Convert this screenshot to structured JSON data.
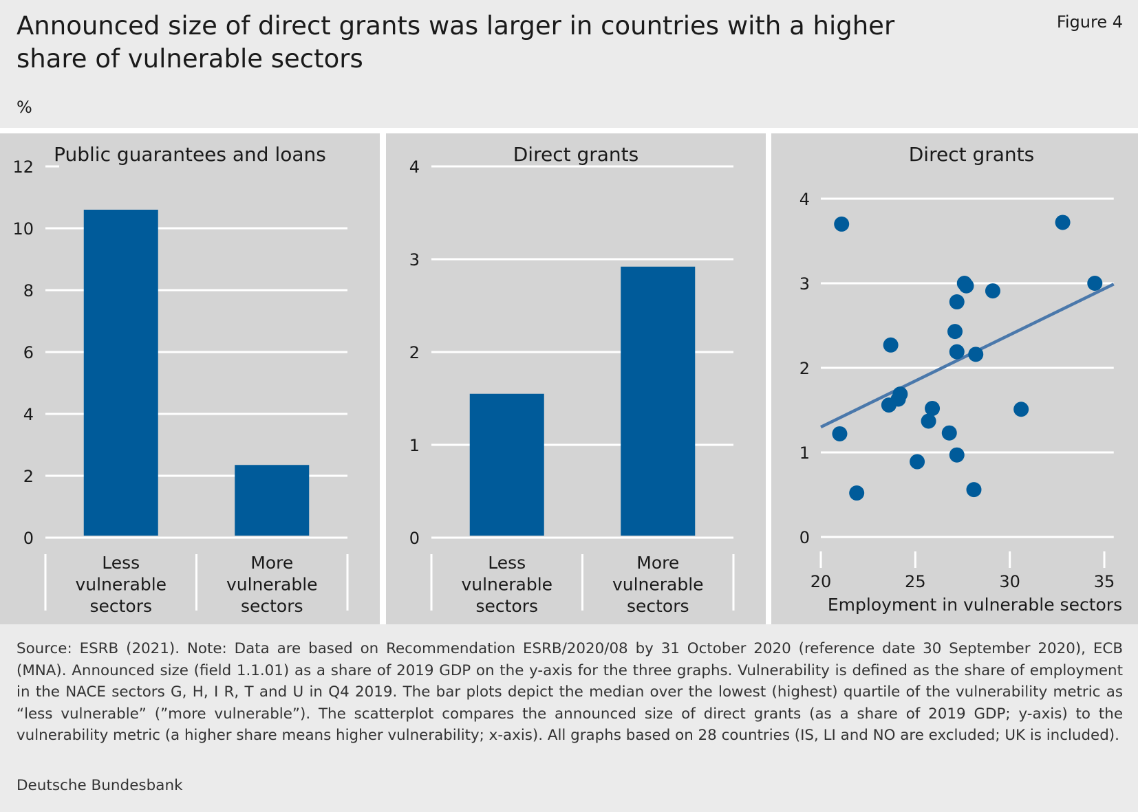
{
  "header": {
    "title": "Announced size of direct grants was larger in countries with a higher share of vulnerable sectors",
    "figure_label": "Figure 4",
    "unit": "%"
  },
  "colors": {
    "background": "#ebebeb",
    "panel": "#d4d4d4",
    "bar": "#005b9a",
    "trend": "#4a78ab",
    "grid": "#ffffff"
  },
  "chart_data": [
    {
      "type": "bar",
      "title": "Public guarantees and loans",
      "categories": [
        "Less vulnerable sectors",
        "More vulnerable sectors"
      ],
      "category_lines": [
        [
          "Less",
          "vulnerable",
          "sectors"
        ],
        [
          "More",
          "vulnerable",
          "sectors"
        ]
      ],
      "values": [
        10.6,
        2.35
      ],
      "ylim": [
        0,
        12
      ],
      "yticks": [
        0,
        2,
        4,
        6,
        8,
        10,
        12
      ],
      "grid": true
    },
    {
      "type": "bar",
      "title": "Direct grants",
      "categories": [
        "Less vulnerable sectors",
        "More vulnerable sectors"
      ],
      "category_lines": [
        [
          "Less",
          "vulnerable",
          "sectors"
        ],
        [
          "More",
          "vulnerable",
          "sectors"
        ]
      ],
      "values": [
        1.55,
        2.92
      ],
      "ylim": [
        0,
        4
      ],
      "yticks": [
        0,
        1,
        2,
        3,
        4
      ],
      "grid": true
    },
    {
      "type": "scatter",
      "title": "Direct grants",
      "xlabel": "Employment in vulnerable sectors",
      "xlim": [
        20,
        35.5
      ],
      "ylim": [
        0,
        4
      ],
      "xticks": [
        20,
        25,
        30,
        35
      ],
      "yticks": [
        0,
        1,
        2,
        3,
        4
      ],
      "grid": true,
      "points": [
        {
          "x": 21.1,
          "y": 3.7
        },
        {
          "x": 32.8,
          "y": 3.72
        },
        {
          "x": 34.5,
          "y": 3.0
        },
        {
          "x": 27.6,
          "y": 3.0
        },
        {
          "x": 27.7,
          "y": 2.97
        },
        {
          "x": 29.1,
          "y": 2.91
        },
        {
          "x": 27.2,
          "y": 2.78
        },
        {
          "x": 23.7,
          "y": 2.27
        },
        {
          "x": 27.1,
          "y": 2.43
        },
        {
          "x": 27.2,
          "y": 2.19
        },
        {
          "x": 28.2,
          "y": 2.16
        },
        {
          "x": 24.2,
          "y": 1.69
        },
        {
          "x": 24.1,
          "y": 1.63
        },
        {
          "x": 23.6,
          "y": 1.56
        },
        {
          "x": 25.9,
          "y": 1.52
        },
        {
          "x": 30.6,
          "y": 1.51
        },
        {
          "x": 25.7,
          "y": 1.37
        },
        {
          "x": 21.0,
          "y": 1.22
        },
        {
          "x": 26.8,
          "y": 1.23
        },
        {
          "x": 27.2,
          "y": 0.97
        },
        {
          "x": 25.1,
          "y": 0.89
        },
        {
          "x": 28.1,
          "y": 0.56
        },
        {
          "x": 21.9,
          "y": 0.52
        }
      ],
      "trendline": {
        "x": [
          20,
          35.5
        ],
        "y": [
          1.3,
          2.99
        ]
      }
    }
  ],
  "footer": {
    "note": "Source: ESRB (2021). Note: Data are based on Recommendation ESRB/2020/08 by 31 October 2020 (reference date 30 September 2020), ECB (MNA). Announced size (field 1.1.01) as a share of 2019 GDP on the y-axis for the three graphs. Vulnerability is defined as the share of employment in the NACE sectors G, H, I R, T and U in Q4 2019. The bar plots depict the median over the lowest (highest) quartile of the vulnerability metric as “less vulnerable” (”more vulnerable”). The scatterplot compares the announced size of direct grants (as a share of 2019 GDP; y-axis) to the vulnerability metric (a higher share means higher vulnerability; x-axis). All graphs based on 28 countries (IS, LI and NO are excluded; UK is included).",
    "publisher": "Deutsche Bundesbank"
  }
}
